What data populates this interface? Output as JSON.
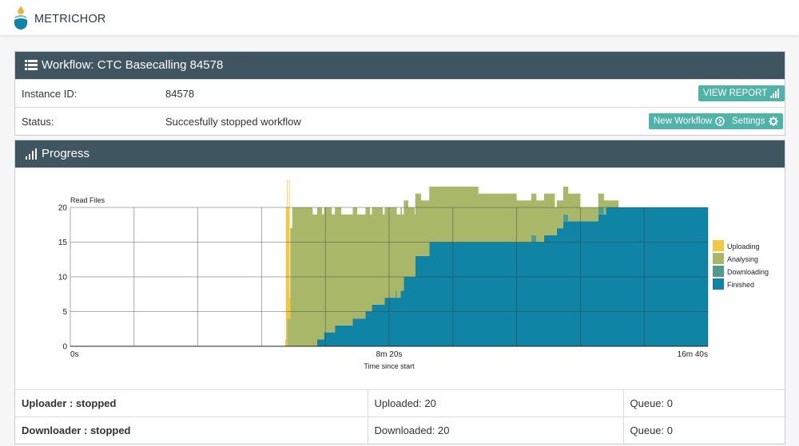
{
  "app": {
    "brand": "METRICHOR"
  },
  "workflow": {
    "title": "Workflow: CTC Basecalling 84578",
    "instance_label": "Instance ID:",
    "instance_value": "84578",
    "status_label": "Status:",
    "status_value": "Succesfully stopped workflow",
    "view_report": "VIEW REPORT",
    "new_workflow": "New Workflow",
    "settings": "Settings"
  },
  "progress": {
    "title": "Progress",
    "uploader_label": "Uploader : stopped",
    "uploaded": "Uploaded: 20",
    "uploader_queue": "Queue: 0",
    "downloader_label": "Downloader : stopped",
    "downloaded": "Downloaded: 20",
    "downloader_queue": "Queue: 0"
  },
  "colors": {
    "header": "#3f5560",
    "button": "#4fb3a8",
    "uploading": "#f3c744",
    "analysing": "#a8b868",
    "downloading": "#4f9b8c",
    "finished": "#0f84a4"
  },
  "chart_data": {
    "type": "area",
    "stacked": true,
    "ylabel": "Read Files",
    "xlabel": "Time since start",
    "x_unit": "seconds",
    "xlim": [
      0,
      1000
    ],
    "ylim": [
      0,
      20
    ],
    "y_ticks": [
      0,
      5,
      10,
      15,
      20
    ],
    "x_tick_labels": [
      {
        "x": 0,
        "label": "0s"
      },
      {
        "x": 500,
        "label": "8m 20s"
      },
      {
        "x": 1000,
        "label": "16m 40s"
      }
    ],
    "grid": true,
    "legend_position": "right",
    "series": [
      {
        "name": "Uploading",
        "color": "#f3c744",
        "points": [
          [
            336,
            0
          ],
          [
            337,
            1
          ],
          [
            338,
            20
          ],
          [
            339,
            20
          ],
          [
            340,
            20
          ],
          [
            341,
            16
          ],
          [
            342,
            16
          ],
          [
            343,
            20
          ],
          [
            344,
            3
          ],
          [
            345,
            0
          ],
          [
            346,
            0
          ]
        ]
      },
      {
        "name": "Analysing",
        "color": "#a8b868",
        "points": [
          [
            336,
            0
          ],
          [
            340,
            4
          ],
          [
            342,
            4
          ],
          [
            345,
            17
          ],
          [
            348,
            20
          ],
          [
            360,
            20
          ],
          [
            380,
            19
          ],
          [
            385,
            19
          ],
          [
            395,
            18
          ],
          [
            405,
            18
          ],
          [
            410,
            17
          ],
          [
            420,
            17
          ],
          [
            425,
            16
          ],
          [
            440,
            16
          ],
          [
            450,
            15
          ],
          [
            465,
            15
          ],
          [
            470,
            14
          ],
          [
            480,
            14
          ],
          [
            490,
            13
          ],
          [
            500,
            13
          ],
          [
            510,
            12
          ],
          [
            520,
            11
          ],
          [
            525,
            11
          ],
          [
            530,
            10
          ],
          [
            540,
            9
          ],
          [
            550,
            8
          ],
          [
            560,
            8
          ],
          [
            580,
            8
          ],
          [
            600,
            8
          ],
          [
            620,
            8
          ],
          [
            640,
            7
          ],
          [
            660,
            7
          ],
          [
            680,
            7
          ],
          [
            700,
            6
          ],
          [
            720,
            6
          ],
          [
            740,
            6
          ],
          [
            760,
            4
          ],
          [
            780,
            4
          ],
          [
            800,
            2
          ],
          [
            820,
            2
          ],
          [
            840,
            1
          ],
          [
            860,
            0
          ],
          [
            1000,
            0
          ]
        ]
      },
      {
        "name": "Downloading",
        "color": "#4f9b8c",
        "points": [
          [
            336,
            0
          ],
          [
            400,
            0
          ],
          [
            490,
            0
          ],
          [
            510,
            1
          ],
          [
            512,
            0
          ],
          [
            720,
            0
          ],
          [
            723,
            1
          ],
          [
            728,
            1
          ],
          [
            731,
            0
          ],
          [
            770,
            0
          ],
          [
            773,
            1
          ],
          [
            778,
            1
          ],
          [
            781,
            0
          ],
          [
            825,
            0
          ],
          [
            828,
            1
          ],
          [
            834,
            1
          ],
          [
            837,
            0
          ],
          [
            1000,
            0
          ]
        ]
      },
      {
        "name": "Finished",
        "color": "#0f84a4",
        "points": [
          [
            0,
            0
          ],
          [
            385,
            0
          ],
          [
            387,
            1
          ],
          [
            395,
            1
          ],
          [
            398,
            2
          ],
          [
            412,
            2
          ],
          [
            415,
            3
          ],
          [
            440,
            3
          ],
          [
            443,
            4
          ],
          [
            460,
            4
          ],
          [
            463,
            5
          ],
          [
            470,
            5
          ],
          [
            473,
            6
          ],
          [
            490,
            6
          ],
          [
            493,
            7
          ],
          [
            515,
            7
          ],
          [
            518,
            8
          ],
          [
            520,
            8
          ],
          [
            523,
            10
          ],
          [
            538,
            10
          ],
          [
            541,
            13
          ],
          [
            560,
            13
          ],
          [
            563,
            15
          ],
          [
            740,
            15
          ],
          [
            743,
            16
          ],
          [
            760,
            16
          ],
          [
            763,
            17
          ],
          [
            770,
            17
          ],
          [
            773,
            18
          ],
          [
            825,
            18
          ],
          [
            828,
            19
          ],
          [
            837,
            19
          ],
          [
            840,
            20
          ],
          [
            1000,
            20
          ]
        ]
      }
    ]
  }
}
